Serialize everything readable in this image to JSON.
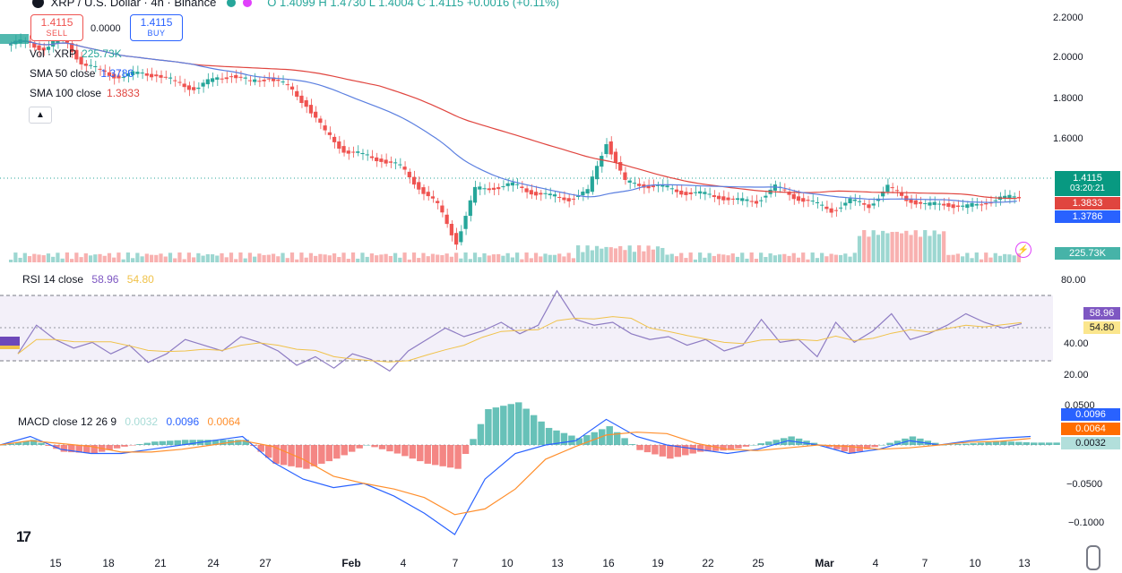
{
  "header": {
    "symbol": "XRP / U.S. Dollar · 4h · Binance",
    "ohlc": "O 1.4099  H 1.4730  L 1.4004  C 1.4115  +0.0016 (+0.11%)"
  },
  "trade": {
    "sell_price": "1.4115",
    "sell_label": "SELL",
    "spread": "0.0000",
    "buy_price": "1.4115",
    "buy_label": "BUY"
  },
  "legend": {
    "vol_label": "Vol · XRP",
    "vol_value": "225.73K",
    "sma50_label": "SMA 50 close",
    "sma50_value": "1.3786",
    "sma100_label": "SMA 100 close",
    "sma100_value": "1.3833"
  },
  "rsi": {
    "label": "RSI 14 close",
    "value1": "58.96",
    "value2": "54.80"
  },
  "macd": {
    "label": "MACD close 12 26 9",
    "hist": "0.0032",
    "macd": "0.0096",
    "signal": "0.0064"
  },
  "price_axis": [
    "2.2000",
    "2.0000",
    "1.8000",
    "1.6000"
  ],
  "price_tags": {
    "last": "1.4115",
    "countdown": "03:20:21",
    "sma100": "1.3833",
    "sma50": "1.3786",
    "volume": "225.73K"
  },
  "rsi_axis": [
    "80.00",
    "40.00",
    "20.00"
  ],
  "rsi_tags": [
    "58.96",
    "54.80"
  ],
  "macd_axis": [
    "0.0500",
    "−0.0500",
    "−0.1000"
  ],
  "macd_tags": [
    "0.0096",
    "0.0064",
    "0.0032"
  ],
  "x_axis": [
    {
      "label": "15"
    },
    {
      "label": "18"
    },
    {
      "label": "21"
    },
    {
      "label": "24"
    },
    {
      "label": "27"
    },
    {
      "label": "Feb"
    },
    {
      "label": "4"
    },
    {
      "label": "7"
    },
    {
      "label": "10"
    },
    {
      "label": "13"
    },
    {
      "label": "16"
    },
    {
      "label": "19"
    },
    {
      "label": "22"
    },
    {
      "label": "25"
    },
    {
      "label": "Mar"
    },
    {
      "label": "4"
    },
    {
      "label": "7"
    },
    {
      "label": "10"
    },
    {
      "label": "13"
    }
  ],
  "colors": {
    "up": "#26a69a",
    "down": "#ef5350",
    "sma50": "#5b7fe0",
    "sma100": "#e0453f",
    "rsi": "#8e7cc3",
    "rsi_ma": "#f0c24a",
    "macd": "#2962ff",
    "signal": "#ff8f2d"
  },
  "chart_data": {
    "type": "candlestick",
    "price_series": [
      2.08,
      2.1,
      2.06,
      2.12,
      2.0,
      1.97,
      1.94,
      1.96,
      1.95,
      1.92,
      1.89,
      1.93,
      1.95,
      1.92,
      1.94,
      1.9,
      1.82,
      1.7,
      1.62,
      1.6,
      1.58,
      1.55,
      1.46,
      1.38,
      1.22,
      1.45,
      1.46,
      1.47,
      1.44,
      1.42,
      1.41,
      1.44,
      1.66,
      1.48,
      1.47,
      1.46,
      1.44,
      1.43,
      1.42,
      1.4,
      1.4,
      1.46,
      1.42,
      1.39,
      1.36,
      1.4,
      1.38,
      1.46,
      1.41,
      1.38,
      1.39,
      1.37,
      1.39,
      1.41,
      1.42
    ],
    "rsi_series": [
      38,
      58,
      48,
      42,
      46,
      38,
      44,
      32,
      38,
      48,
      44,
      40,
      50,
      46,
      40,
      30,
      36,
      28,
      38,
      34,
      26,
      40,
      48,
      56,
      50,
      54,
      60,
      52,
      58,
      82,
      62,
      58,
      60,
      52,
      48,
      50,
      44,
      48,
      40,
      44,
      62,
      46,
      48,
      36,
      60,
      46,
      54,
      66,
      48,
      52,
      58,
      66,
      60,
      56,
      59
    ],
    "macd_series": [
      0.0,
      0.01,
      -0.005,
      -0.01,
      -0.01,
      -0.005,
      0.0,
      0.005,
      0.01,
      -0.02,
      -0.04,
      -0.05,
      -0.045,
      -0.06,
      -0.08,
      -0.105,
      -0.04,
      -0.01,
      0.0,
      0.005,
      0.03,
      0.01,
      0.0,
      -0.005,
      -0.01,
      -0.005,
      0.005,
      0.0,
      -0.01,
      -0.005,
      0.005,
      0.0,
      0.005,
      0.008,
      0.01
    ],
    "y_ranges": {
      "price": [
        1.3,
        2.2
      ],
      "rsi": [
        10,
        90
      ],
      "macd": [
        -0.11,
        0.06
      ]
    }
  }
}
